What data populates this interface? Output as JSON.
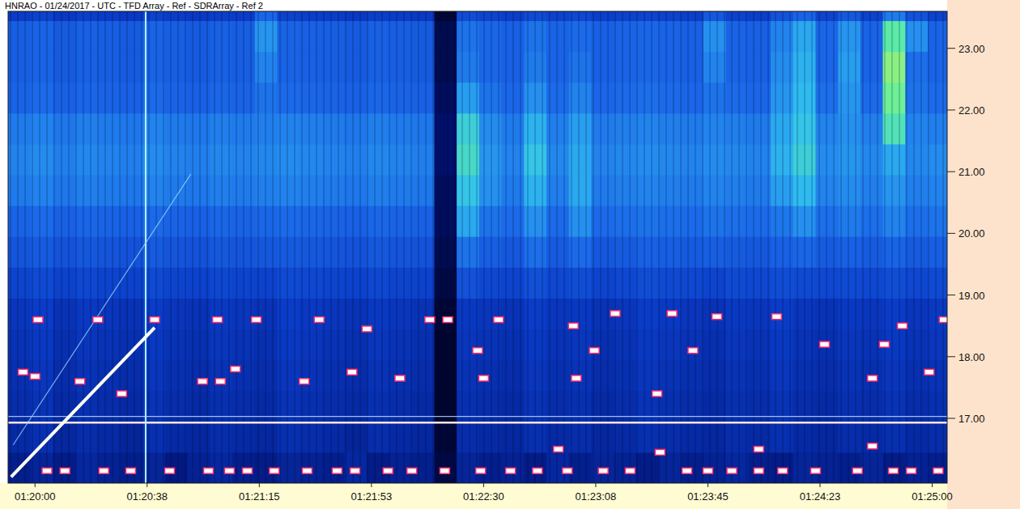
{
  "chart_data": {
    "type": "heatmap",
    "title": "HNRAO - 01/24/2017 - UTC - TFD Array - Ref - SDRArray - Ref 2",
    "xlim": [
      4791,
      5105
    ],
    "ylim": [
      15.95,
      23.6
    ],
    "zlim": [
      0,
      100
    ],
    "xticks": [
      {
        "value": 4800,
        "label": "01:20:00"
      },
      {
        "value": 4837.5,
        "label": "01:20:38"
      },
      {
        "value": 4875,
        "label": "01:21:15"
      },
      {
        "value": 4912.5,
        "label": "01:21:53"
      },
      {
        "value": 4950,
        "label": "01:22:30"
      },
      {
        "value": 4987.5,
        "label": "01:23:08"
      },
      {
        "value": 5025,
        "label": "01:23:45"
      },
      {
        "value": 5062.5,
        "label": "01:24:23"
      },
      {
        "value": 5100,
        "label": "01:25:00"
      }
    ],
    "yticks": [
      {
        "value": 17,
        "label": "17.00"
      },
      {
        "value": 18,
        "label": "18.00"
      },
      {
        "value": 19,
        "label": "19.00"
      },
      {
        "value": 20,
        "label": "20.00"
      },
      {
        "value": 21,
        "label": "21.00"
      },
      {
        "value": 22,
        "label": "22.00"
      },
      {
        "value": 23,
        "label": "23.00"
      }
    ],
    "x": [
      4794.75,
      4802.25,
      4809.75,
      4817.25,
      4824.75,
      4832.25,
      4839.75,
      4847.25,
      4854.75,
      4862.25,
      4869.75,
      4877.25,
      4884.75,
      4892.25,
      4899.75,
      4907.25,
      4914.75,
      4922.25,
      4929.75,
      4937.25,
      4944.75,
      4952.25,
      4959.75,
      4967.25,
      4974.75,
      4982.25,
      4989.75,
      4997.25,
      5004.75,
      5012.25,
      5019.75,
      5027.25,
      5034.75,
      5042.25,
      5049.75,
      5057.25,
      5064.75,
      5072.25,
      5079.75,
      5087.25,
      5094.75,
      5102.25
    ],
    "y": [
      16.2,
      16.7,
      17.2,
      17.7,
      18.2,
      18.7,
      19.2,
      19.7,
      20.2,
      20.7,
      21.2,
      21.7,
      22.2,
      22.7,
      23.2,
      23.7
    ],
    "cells": [
      [
        20,
        22,
        19,
        23,
        21,
        20,
        22,
        18,
        21,
        23,
        20,
        19,
        22,
        21,
        20,
        23,
        19,
        21,
        20,
        8,
        22,
        20,
        21,
        19,
        23,
        20,
        22,
        21,
        19,
        22,
        20,
        21,
        23,
        20,
        19,
        22,
        21,
        20,
        22,
        19,
        21,
        20
      ],
      [
        24,
        26,
        23,
        25,
        24,
        22,
        26,
        24,
        23,
        25,
        24,
        23,
        26,
        25,
        24,
        22,
        25,
        24,
        23,
        6,
        25,
        24,
        23,
        26,
        24,
        25,
        23,
        24,
        26,
        25,
        24,
        23,
        25,
        24,
        26,
        24,
        23,
        25,
        24,
        26,
        24,
        25
      ],
      [
        25,
        27,
        24,
        26,
        25,
        24,
        27,
        25,
        24,
        26,
        25,
        24,
        27,
        26,
        25,
        24,
        26,
        25,
        24,
        5,
        26,
        25,
        24,
        27,
        25,
        26,
        24,
        25,
        27,
        26,
        25,
        24,
        26,
        25,
        27,
        25,
        24,
        26,
        25,
        27,
        25,
        26
      ],
      [
        26,
        28,
        25,
        27,
        26,
        25,
        28,
        26,
        25,
        27,
        26,
        25,
        28,
        27,
        26,
        25,
        27,
        26,
        25,
        5,
        27,
        26,
        25,
        28,
        26,
        27,
        25,
        26,
        28,
        27,
        26,
        25,
        27,
        26,
        28,
        26,
        25,
        27,
        26,
        28,
        26,
        27
      ],
      [
        27,
        29,
        26,
        28,
        27,
        26,
        29,
        27,
        26,
        28,
        27,
        26,
        29,
        28,
        27,
        26,
        28,
        27,
        26,
        5,
        28,
        27,
        26,
        29,
        27,
        28,
        26,
        27,
        29,
        28,
        27,
        26,
        28,
        27,
        29,
        27,
        26,
        28,
        27,
        29,
        27,
        28
      ],
      [
        28,
        30,
        27,
        29,
        28,
        27,
        30,
        28,
        27,
        29,
        28,
        27,
        30,
        29,
        28,
        27,
        29,
        28,
        27,
        6,
        29,
        28,
        27,
        30,
        28,
        29,
        27,
        28,
        30,
        29,
        28,
        27,
        29,
        28,
        30,
        28,
        27,
        29,
        28,
        30,
        28,
        29
      ],
      [
        33,
        35,
        32,
        34,
        33,
        32,
        35,
        33,
        32,
        34,
        33,
        32,
        35,
        34,
        33,
        32,
        34,
        33,
        32,
        8,
        38,
        34,
        33,
        37,
        34,
        36,
        33,
        34,
        36,
        35,
        34,
        33,
        35,
        34,
        36,
        35,
        34,
        35,
        34,
        36,
        34,
        35
      ],
      [
        39,
        41,
        38,
        40,
        39,
        38,
        41,
        39,
        38,
        40,
        39,
        40,
        41,
        40,
        39,
        38,
        40,
        39,
        38,
        10,
        48,
        42,
        40,
        47,
        41,
        46,
        40,
        41,
        43,
        42,
        41,
        42,
        41,
        40,
        43,
        45,
        41,
        43,
        41,
        44,
        41,
        42
      ],
      [
        44,
        46,
        43,
        45,
        44,
        43,
        46,
        44,
        43,
        45,
        44,
        45,
        46,
        45,
        44,
        43,
        45,
        44,
        43,
        12,
        60,
        48,
        46,
        55,
        46,
        55,
        46,
        47,
        48,
        47,
        46,
        48,
        47,
        46,
        49,
        55,
        47,
        50,
        47,
        52,
        47,
        48
      ],
      [
        50,
        52,
        49,
        51,
        50,
        49,
        52,
        50,
        49,
        51,
        50,
        51,
        52,
        51,
        50,
        49,
        51,
        50,
        49,
        12,
        66,
        55,
        50,
        62,
        51,
        60,
        50,
        51,
        52,
        51,
        50,
        52,
        51,
        50,
        58,
        64,
        52,
        54,
        51,
        56,
        51,
        52
      ],
      [
        52,
        54,
        51,
        53,
        52,
        51,
        54,
        52,
        51,
        53,
        52,
        53,
        54,
        53,
        52,
        51,
        53,
        52,
        51,
        14,
        70,
        56,
        52,
        66,
        53,
        60,
        52,
        53,
        54,
        53,
        52,
        54,
        53,
        52,
        62,
        68,
        54,
        56,
        53,
        60,
        53,
        54
      ],
      [
        50,
        52,
        49,
        51,
        50,
        49,
        52,
        50,
        49,
        51,
        50,
        51,
        52,
        51,
        50,
        49,
        51,
        50,
        49,
        14,
        68,
        54,
        50,
        62,
        51,
        58,
        50,
        51,
        52,
        51,
        50,
        52,
        51,
        50,
        60,
        66,
        52,
        55,
        51,
        72,
        52,
        51
      ],
      [
        44,
        46,
        43,
        45,
        44,
        43,
        46,
        44,
        43,
        45,
        44,
        48,
        46,
        45,
        44,
        43,
        45,
        44,
        43,
        12,
        58,
        48,
        45,
        55,
        46,
        52,
        45,
        46,
        47,
        46,
        45,
        48,
        46,
        45,
        56,
        64,
        47,
        56,
        46,
        76,
        48,
        46
      ],
      [
        42,
        44,
        41,
        43,
        42,
        41,
        44,
        42,
        41,
        43,
        42,
        52,
        44,
        43,
        42,
        41,
        43,
        42,
        41,
        10,
        50,
        45,
        43,
        50,
        44,
        48,
        43,
        44,
        45,
        44,
        43,
        52,
        44,
        43,
        54,
        62,
        45,
        58,
        44,
        78,
        47,
        44
      ],
      [
        42,
        44,
        41,
        43,
        42,
        41,
        44,
        42,
        41,
        43,
        42,
        56,
        44,
        43,
        42,
        41,
        43,
        42,
        41,
        10,
        48,
        45,
        43,
        48,
        44,
        46,
        43,
        44,
        45,
        44,
        43,
        55,
        44,
        43,
        52,
        60,
        45,
        56,
        44,
        74,
        55,
        44
      ],
      [
        30,
        32,
        29,
        31,
        30,
        29,
        32,
        30,
        29,
        31,
        30,
        45,
        32,
        31,
        30,
        29,
        31,
        30,
        29,
        6,
        36,
        33,
        31,
        35,
        32,
        34,
        31,
        32,
        33,
        32,
        31,
        40,
        32,
        31,
        38,
        44,
        33,
        40,
        32,
        50,
        38,
        32
      ]
    ],
    "carriers": [
      16.93,
      17.03
    ],
    "vertical_lines": [
      4837
    ],
    "sweeps": [
      {
        "x": [
          4792,
          4840
        ],
        "y": [
          16.05,
          18.47
        ]
      },
      {
        "x": [
          4792.7,
          4852.1
        ],
        "y": [
          16.57,
          20.96
        ]
      }
    ],
    "blips": {
      "x": [
        4801,
        4821,
        4840,
        4861,
        4874,
        4895,
        4911,
        4932,
        4938,
        4955,
        4980,
        4994,
        5013,
        5028,
        5048,
        5090,
        5104,
        4796,
        4800,
        4815,
        4829,
        4856,
        4862,
        4867,
        4890,
        4906,
        4922,
        4950,
        4981,
        5008,
        5080,
        5099,
        4948,
        4987,
        5020,
        5064,
        5084,
        4975,
        5009,
        5042,
        5080,
        4804,
        4810,
        4823,
        4832,
        4845,
        4858,
        4865,
        4871,
        4880,
        4891,
        4901,
        4907,
        4918,
        4926,
        4937,
        4949,
        4959,
        4968,
        4978,
        4990,
        4999,
        5018,
        5025,
        5033,
        5042,
        5050,
        5061,
        5075,
        5087,
        5093,
        5102
      ],
      "y": [
        18.6,
        18.6,
        18.6,
        18.6,
        18.6,
        18.6,
        18.45,
        18.6,
        18.6,
        18.6,
        18.5,
        18.7,
        18.7,
        18.65,
        18.65,
        18.5,
        18.6,
        17.75,
        17.68,
        17.6,
        17.4,
        17.6,
        17.6,
        17.8,
        17.6,
        17.75,
        17.65,
        17.65,
        17.65,
        17.4,
        17.65,
        17.75,
        18.1,
        18.1,
        18.1,
        18.2,
        18.2,
        16.5,
        16.45,
        16.5,
        16.55,
        16.15,
        16.15,
        16.15,
        16.15,
        16.15,
        16.15,
        16.15,
        16.15,
        16.15,
        16.15,
        16.15,
        16.15,
        16.15,
        16.15,
        16.15,
        16.15,
        16.15,
        16.15,
        16.15,
        16.15,
        16.15,
        16.15,
        16.15,
        16.15,
        16.15,
        16.15,
        16.15,
        16.15,
        16.15,
        16.15,
        16.15
      ]
    }
  }
}
